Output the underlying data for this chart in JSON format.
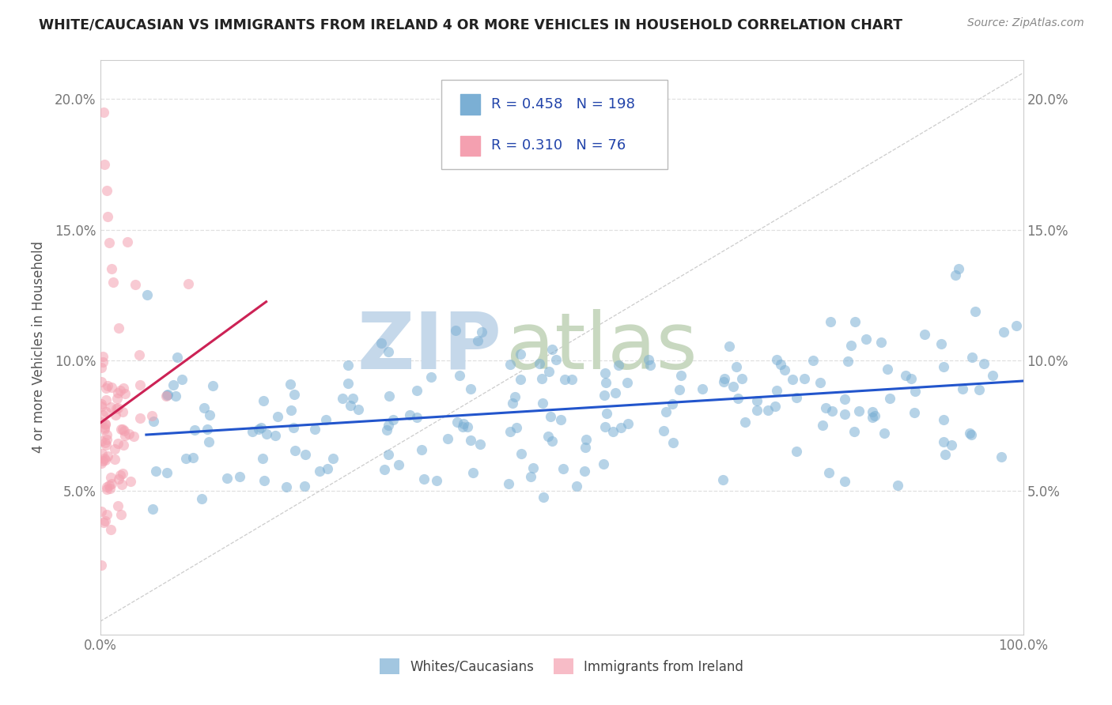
{
  "title": "WHITE/CAUCASIAN VS IMMIGRANTS FROM IRELAND 4 OR MORE VEHICLES IN HOUSEHOLD CORRELATION CHART",
  "source": "Source: ZipAtlas.com",
  "ylabel": "4 or more Vehicles in Household",
  "xlim": [
    0.0,
    1.0
  ],
  "ylim": [
    -0.005,
    0.215
  ],
  "ytick_values": [
    0.05,
    0.1,
    0.15,
    0.2
  ],
  "R1": 0.458,
  "N1": 198,
  "R2": 0.31,
  "N2": 76,
  "blue_color": "#7bafd4",
  "pink_color": "#f4a0b0",
  "trend_blue": "#2255cc",
  "trend_pink": "#cc2255",
  "diag_color": "#cccccc",
  "watermark": "ZIPatlas",
  "watermark_zip_color": "#b8cfe8",
  "watermark_atlas_color": "#c8d8c8",
  "background_color": "#ffffff",
  "grid_color": "#e0e0e0",
  "title_color": "#222222",
  "source_color": "#888888",
  "axis_label_color": "#555555",
  "tick_color": "#777777",
  "legend_box_edge": "#bbbbbb",
  "legend_R_color": "#2244aa",
  "legend_N_color": "#cc2244"
}
